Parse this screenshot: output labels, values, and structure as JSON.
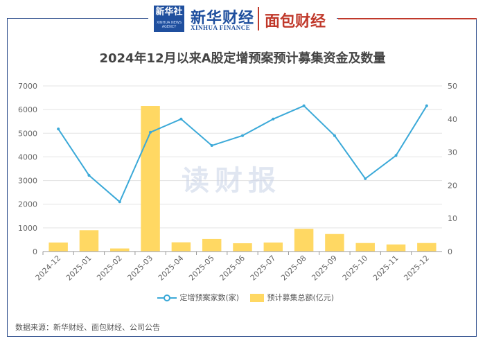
{
  "header": {
    "logo_main": "新华社",
    "logo_sub": "XINHUA NEWS AGENCY",
    "brand_cn": "新华财经",
    "brand_en": "XINHUA FINANCE",
    "brand2": "面包财经"
  },
  "watermark": "读财报",
  "source": "数据来源：新华财经、面包财经、公司公告",
  "colors": {
    "line": "#3ba9d8",
    "bar": "#ffd863",
    "grid": "#e3e3e3",
    "axis_text": "#666666"
  },
  "chart_data": {
    "type": "bar",
    "title": "2024年12月以来A股定增预案预计募集资金及数量",
    "categories": [
      "2024-12",
      "2025-01",
      "2025-02",
      "2025-03",
      "2025-04",
      "2025-05",
      "2025-06",
      "2025-07",
      "2025-08",
      "2025-09",
      "2025-10",
      "2025-11",
      "2025-12"
    ],
    "left_axis": {
      "min": 0,
      "max": 7000,
      "ticks": [
        0,
        1000,
        2000,
        3000,
        4000,
        5000,
        6000,
        7000
      ]
    },
    "right_axis": {
      "min": 0,
      "max": 50,
      "ticks": [
        0,
        10,
        20,
        30,
        40,
        50
      ]
    },
    "series": [
      {
        "name": "预计募集总额(亿元)",
        "type": "bar",
        "axis": "left",
        "values": [
          380,
          900,
          130,
          6150,
          390,
          530,
          350,
          380,
          960,
          740,
          360,
          300,
          360
        ]
      },
      {
        "name": "定增预案家数(家)",
        "type": "line",
        "axis": "right",
        "values": [
          37,
          23,
          15,
          36,
          40,
          32,
          35,
          40,
          44,
          35,
          22,
          29,
          44
        ]
      }
    ],
    "legend": {
      "position": "bottom",
      "line_label": "定增预案家数(家)",
      "bar_label": "预计募集总额(亿元)"
    },
    "grid": true
  }
}
